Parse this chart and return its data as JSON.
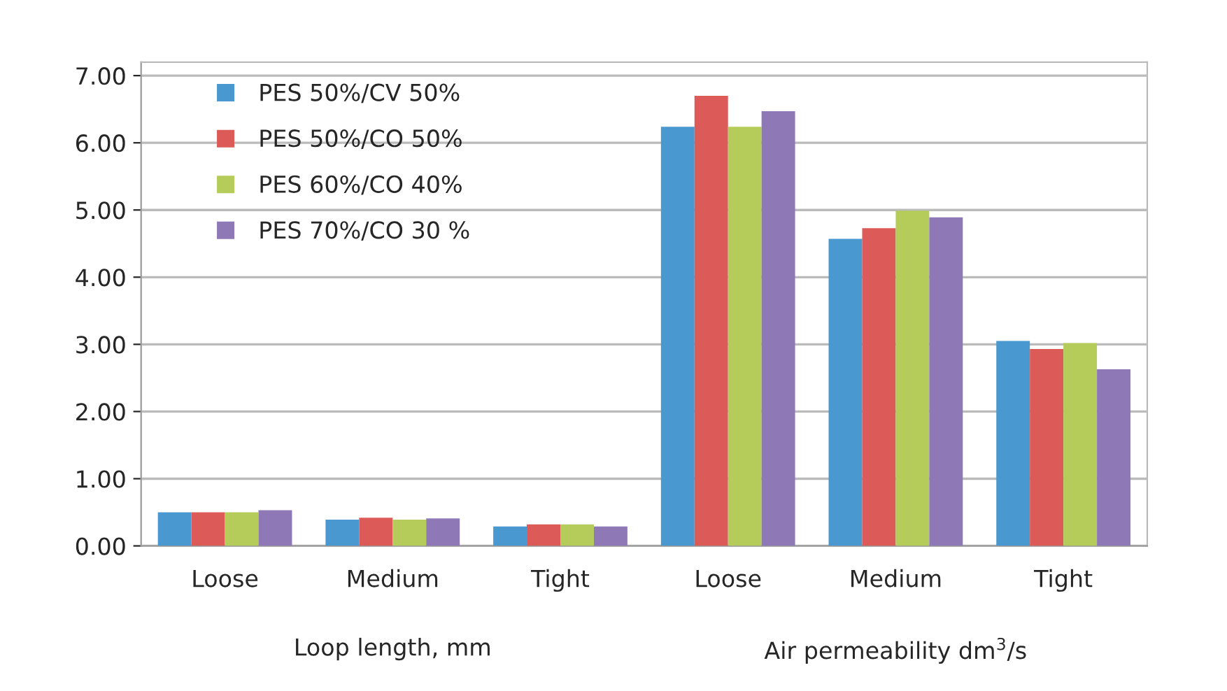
{
  "chart_data": {
    "type": "bar",
    "categories": [
      "Loose",
      "Medium",
      "Tight",
      "Loose",
      "Medium",
      "Tight"
    ],
    "series": [
      {
        "name": "PES 50%/CV 50%",
        "color": "#4a98d0",
        "values": [
          0.5,
          0.39,
          0.29,
          6.24,
          4.57,
          3.05
        ]
      },
      {
        "name": "PES 50%/CO 50%",
        "color": "#dc5a57",
        "values": [
          0.5,
          0.42,
          0.32,
          6.7,
          4.73,
          2.93
        ]
      },
      {
        "name": "PES 60%/CO 40%",
        "color": "#b5cc5a",
        "values": [
          0.5,
          0.39,
          0.32,
          6.24,
          4.99,
          3.02
        ]
      },
      {
        "name": "PES 70%/CO 30 %",
        "color": "#8e78b6",
        "values": [
          0.53,
          0.41,
          0.29,
          6.47,
          4.89,
          2.63
        ]
      }
    ],
    "annotations": [
      "Loop length, mm",
      "Air permeability dm$^{3}$/s"
    ],
    "ylim": [
      0,
      7.2
    ],
    "yticks": [
      {
        "value": 0,
        "label": "0.00"
      },
      {
        "value": 1,
        "label": "1.00"
      },
      {
        "value": 2,
        "label": "2.00"
      },
      {
        "value": 3,
        "label": "3.00"
      },
      {
        "value": 4,
        "label": "4.00"
      },
      {
        "value": 5,
        "label": "5.00"
      },
      {
        "value": 6,
        "label": "6.00"
      },
      {
        "value": 7,
        "label": "7.00"
      }
    ],
    "grid": "y",
    "legend": "top left"
  }
}
